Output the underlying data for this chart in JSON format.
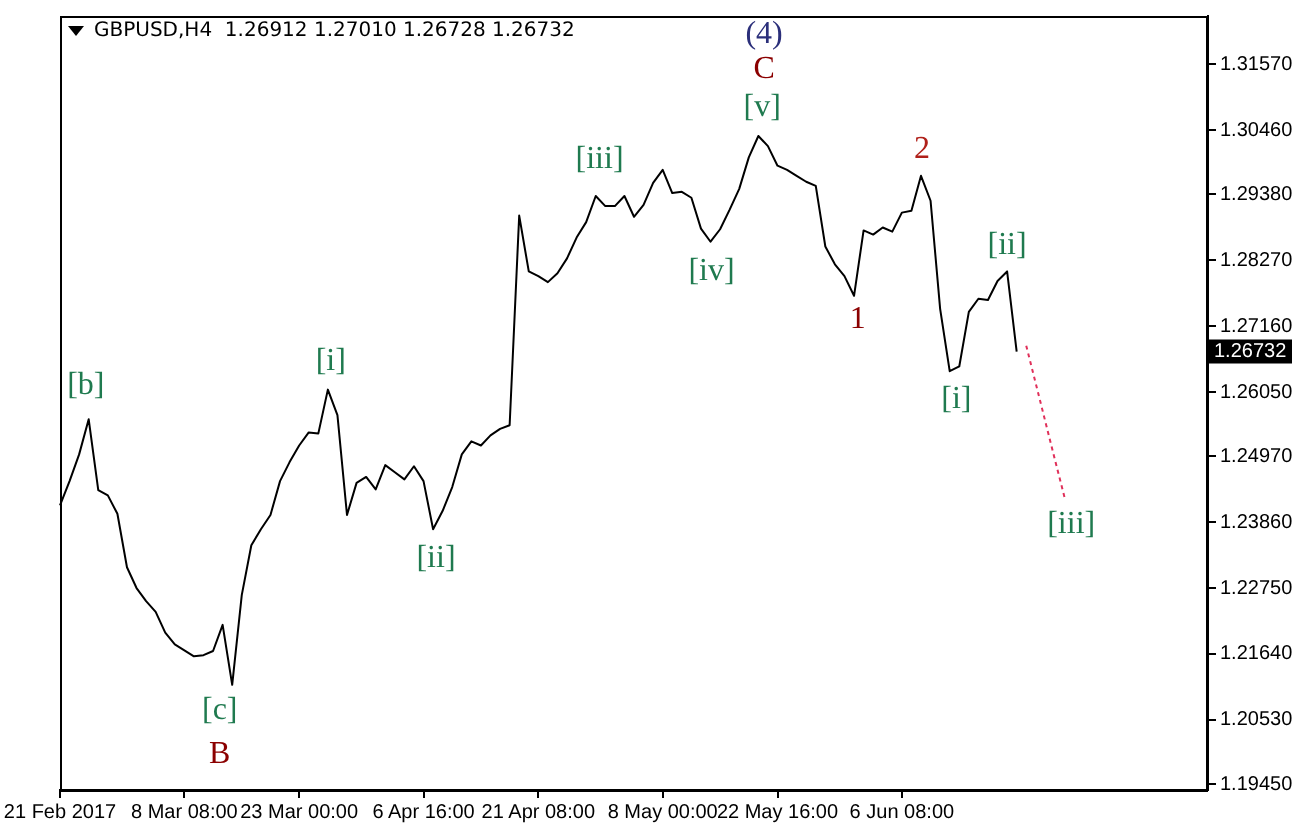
{
  "chart_data": {
    "type": "line",
    "title": "GBPUSD,H4  1.26912 1.27010 1.26728 1.26732",
    "categories": [
      "21 Feb 2017",
      null,
      null,
      null,
      null,
      null,
      null,
      null,
      null,
      null,
      null,
      null,
      null,
      "8 Mar 08:00",
      null,
      null,
      null,
      null,
      null,
      null,
      null,
      null,
      null,
      null,
      null,
      "23 Mar 00:00",
      null,
      null,
      null,
      null,
      null,
      null,
      null,
      null,
      null,
      null,
      null,
      null,
      "6 Apr 16:00",
      null,
      null,
      null,
      null,
      null,
      null,
      null,
      null,
      null,
      null,
      null,
      "21 Apr 08:00",
      null,
      null,
      null,
      null,
      null,
      null,
      null,
      null,
      null,
      null,
      null,
      null,
      "8 May 00:00",
      null,
      null,
      null,
      null,
      null,
      null,
      null,
      null,
      null,
      null,
      null,
      "22 May 16:00",
      null,
      null,
      null,
      null,
      null,
      null,
      null,
      null,
      null,
      null,
      null,
      null,
      "6 Jun 08:00",
      null,
      null,
      null,
      null,
      null,
      null,
      null,
      null,
      null,
      null,
      null,
      null,
      null,
      null,
      null,
      null,
      null,
      null,
      null,
      null,
      null,
      null,
      null,
      null,
      null,
      null,
      null,
      null,
      null,
      null,
      null,
      null
    ],
    "ylim": [
      1.1935,
      1.3238
    ],
    "yticks": [
      {
        "value": 1.1945,
        "label": "1.19450"
      },
      {
        "value": 1.2053,
        "label": "1.20530"
      },
      {
        "value": 1.2164,
        "label": "1.21640"
      },
      {
        "value": 1.2275,
        "label": "1.22750"
      },
      {
        "value": 1.2386,
        "label": "1.23860"
      },
      {
        "value": 1.2497,
        "label": "1.24970"
      },
      {
        "value": 1.2605,
        "label": "1.26050"
      },
      {
        "value": 1.2716,
        "label": "1.27160"
      },
      {
        "value": 1.2827,
        "label": "1.28270"
      },
      {
        "value": 1.2938,
        "label": "1.29380"
      },
      {
        "value": 1.3046,
        "label": "1.30460"
      },
      {
        "value": 1.3157,
        "label": "1.31570"
      }
    ],
    "grid": false,
    "legend": false,
    "marker": "none",
    "series": [
      {
        "color": "#000000",
        "line_style": "solid",
        "values": [
          1.2414,
          1.2455,
          1.25,
          1.2559,
          1.244,
          1.2431,
          1.24,
          1.231,
          1.2275,
          1.2253,
          1.2235,
          1.22,
          1.218,
          1.217,
          1.216,
          1.2162,
          1.2169,
          1.2213,
          1.2112,
          1.2263,
          1.2347,
          1.2374,
          1.2398,
          1.2455,
          1.2487,
          1.2515,
          1.2537,
          1.2535,
          1.2609,
          1.2566,
          1.2398,
          1.2452,
          1.2462,
          1.2441,
          1.2482,
          1.247,
          1.2458,
          1.248,
          1.2455,
          1.2374,
          1.2405,
          1.2445,
          1.25,
          1.2522,
          1.2515,
          1.2532,
          1.2543,
          1.2549,
          1.2902,
          1.2808,
          1.28,
          1.279,
          1.2805,
          1.283,
          1.2865,
          1.2891,
          1.2935,
          1.2918,
          1.2918,
          1.2935,
          1.29,
          1.292,
          1.2957,
          1.2979,
          1.294,
          1.2942,
          1.2932,
          1.288,
          1.2858,
          1.2879,
          1.2912,
          1.2947,
          1.3,
          1.3036,
          1.3019,
          1.2986,
          1.2979,
          1.2969,
          1.2959,
          1.2952,
          1.285,
          1.282,
          1.28,
          1.2767,
          1.2877,
          1.287,
          1.2882,
          1.2875,
          1.2907,
          1.291,
          1.2969,
          1.2927,
          1.2745,
          1.264,
          1.2648,
          1.274,
          1.2762,
          1.276,
          1.2792,
          1.2808,
          1.2673,
          null,
          null,
          null,
          null,
          null,
          null,
          null,
          null,
          null,
          null,
          null,
          null,
          null,
          null,
          null,
          null,
          null,
          null,
          null,
          null
        ]
      },
      {
        "color": "#e0305a",
        "line_style": "dotted",
        "values": [
          null,
          null,
          null,
          null,
          null,
          null,
          null,
          null,
          null,
          null,
          null,
          null,
          null,
          null,
          null,
          null,
          null,
          null,
          null,
          null,
          null,
          null,
          null,
          null,
          null,
          null,
          null,
          null,
          null,
          null,
          null,
          null,
          null,
          null,
          null,
          null,
          null,
          null,
          null,
          null,
          null,
          null,
          null,
          null,
          null,
          null,
          null,
          null,
          null,
          null,
          null,
          null,
          null,
          null,
          null,
          null,
          null,
          null,
          null,
          null,
          null,
          null,
          null,
          null,
          null,
          null,
          null,
          null,
          null,
          null,
          null,
          null,
          null,
          null,
          null,
          null,
          null,
          null,
          null,
          null,
          null,
          null,
          null,
          null,
          null,
          null,
          null,
          null,
          null,
          null,
          null,
          null,
          null,
          null,
          null,
          null,
          null,
          null,
          null,
          null,
          null,
          1.2683,
          1.2619,
          1.2555,
          1.2491,
          1.2428,
          null,
          null,
          null,
          null,
          null,
          null,
          null,
          null,
          null,
          null,
          null,
          null,
          null,
          null,
          null
        ]
      }
    ],
    "annotations": [
      "[b]",
      "[c]",
      "B",
      "[i]",
      "[ii]",
      "[iii]",
      "[iv]",
      "[v]",
      "C",
      "(4)",
      "1",
      "2",
      "[i]",
      "[ii]",
      "[iii]",
      "1.26732"
    ]
  }
}
